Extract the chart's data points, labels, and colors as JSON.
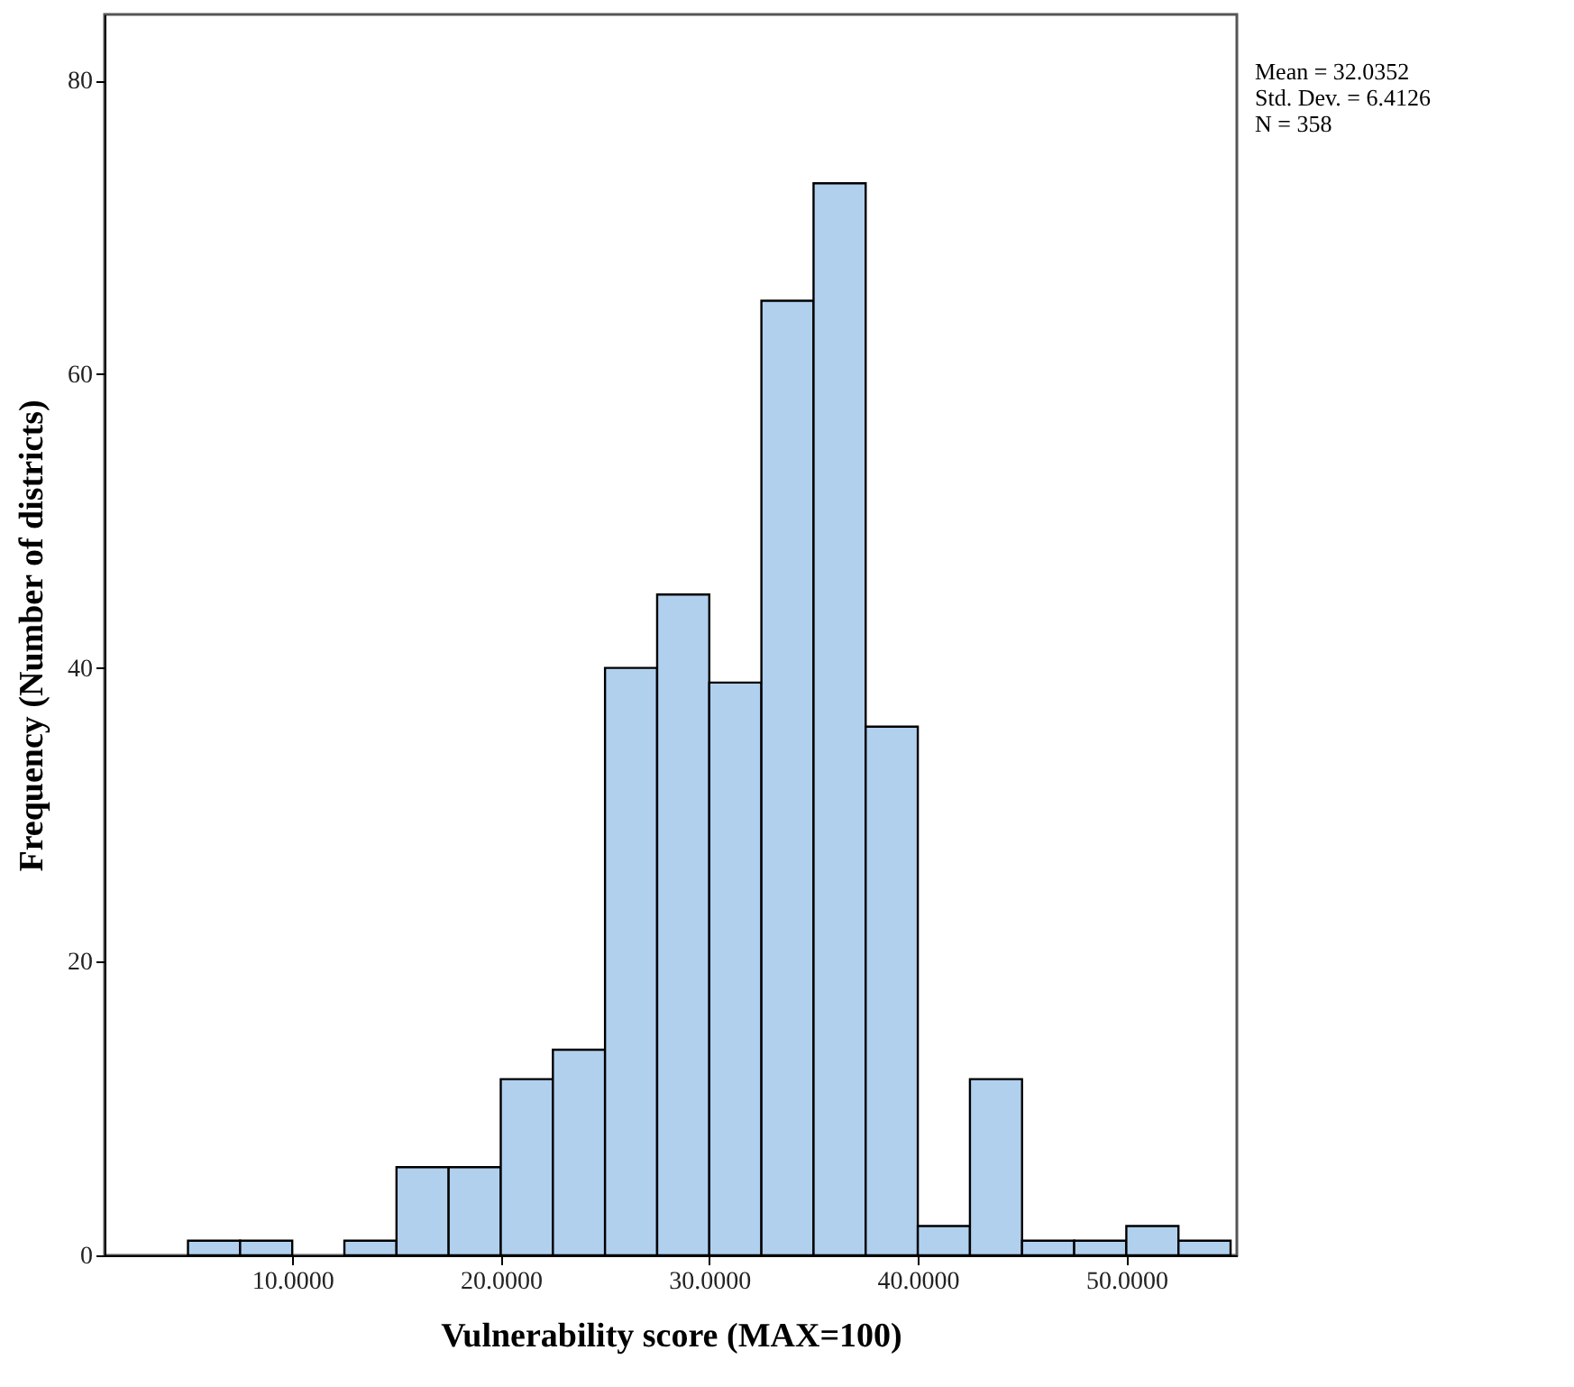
{
  "chart_data": {
    "type": "histogram",
    "xlabel": "Vulnerability score (MAX=100)",
    "ylabel": "Frequency (Number of districts)",
    "bins": [
      5,
      7.5,
      10,
      12.5,
      15,
      17.5,
      20,
      22.5,
      25,
      27.5,
      30,
      32.5,
      35,
      37.5,
      40,
      42.5,
      45,
      47.5,
      50,
      52.5,
      55
    ],
    "values": [
      1,
      1,
      0,
      1,
      6,
      6,
      12,
      14,
      40,
      45,
      39,
      65,
      73,
      36,
      2,
      12,
      1,
      1,
      2,
      1
    ],
    "color": "#b0d0ee",
    "xlim": [
      1,
      55.3
    ],
    "xticks": [
      {
        "value": 10,
        "label": "10.0000"
      },
      {
        "value": 20,
        "label": "20.0000"
      },
      {
        "value": 30,
        "label": "30.0000"
      },
      {
        "value": 40,
        "label": "40.0000"
      },
      {
        "value": 50,
        "label": "50.0000"
      }
    ],
    "ylim": [
      0,
      84.5
    ],
    "yticks": [
      0,
      20,
      40,
      60,
      80
    ],
    "grid": false,
    "annotations": [
      "Mean = 32.0352",
      "Std. Dev. = 6.4126",
      "N = 358"
    ]
  }
}
